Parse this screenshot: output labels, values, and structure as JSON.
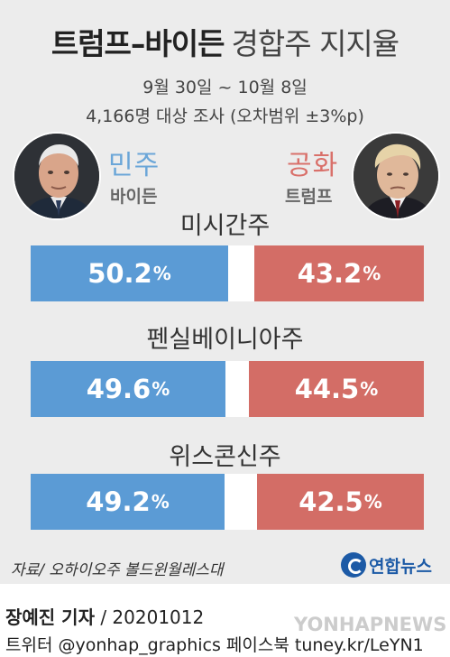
{
  "header": {
    "title_bold": "트럼프–바이든",
    "title_light": "경합주 지지율",
    "period": "9월 30일 ~ 10월 8일",
    "method": "4,166명 대상 조사 (오차범위 ±3%p)"
  },
  "candidates": {
    "dem": {
      "party": "민주",
      "name": "바이든",
      "color": "#5b9bd5"
    },
    "rep": {
      "party": "공화",
      "name": "트럼프",
      "color": "#d36d66"
    }
  },
  "chart_data": {
    "type": "bar",
    "orientation": "horizontal-split",
    "categories": [
      "미시간주",
      "펜실베이니아주",
      "위스콘신주"
    ],
    "series": [
      {
        "name": "바이든",
        "values": [
          50.2,
          49.6,
          49.2
        ]
      },
      {
        "name": "트럼프",
        "values": [
          43.2,
          44.5,
          42.5
        ]
      }
    ],
    "value_labels": {
      "dem": [
        "50.2",
        "49.6",
        "49.2"
      ],
      "rep": [
        "43.2",
        "44.5",
        "42.5"
      ]
    },
    "unit": "%"
  },
  "footer": {
    "source": "자료/ 오하이오주 볼드윈월레스대",
    "logo": "연합뉴스",
    "reporter_name": "장예진 기자",
    "reporter_date": " / 20201012",
    "sns": "트위터 @yonhap_graphics  페이스북 tuney.kr/LeYN1",
    "watermark": "YONHAPNEWS"
  }
}
